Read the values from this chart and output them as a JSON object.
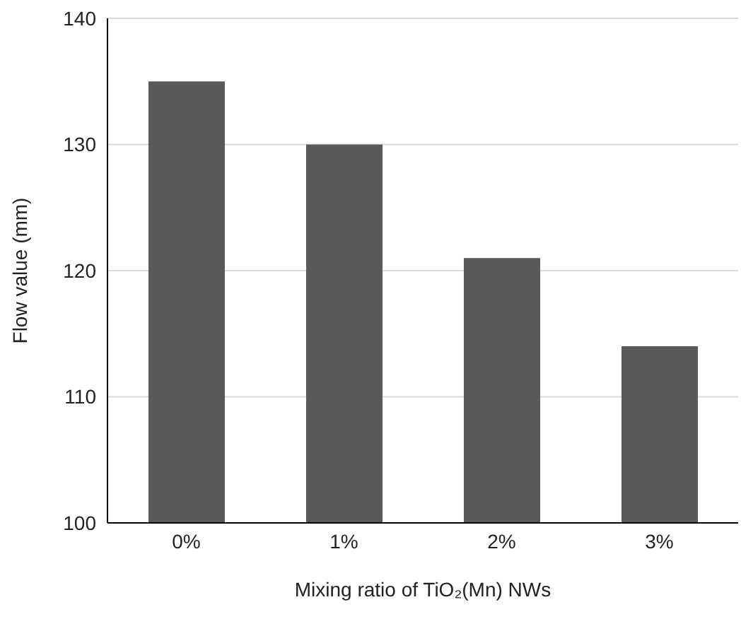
{
  "chart_data": {
    "type": "bar",
    "xlabel": "Mixing ratio of TiO₂(Mn) NWs",
    "ylabel": "Flow value (mm)",
    "categories": [
      "0%",
      "1%",
      "2%",
      "3%"
    ],
    "values": [
      135,
      130,
      121,
      114
    ],
    "color": "#595959",
    "ylim": [
      100,
      140
    ],
    "yticks": [
      100,
      110,
      120,
      130,
      140
    ],
    "grid": "y"
  }
}
